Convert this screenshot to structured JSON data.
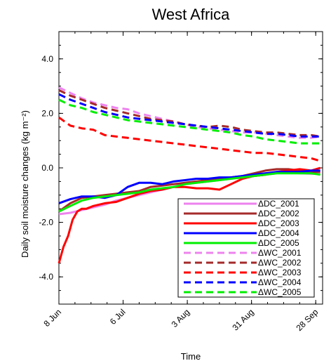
{
  "chart_data": {
    "type": "line",
    "title": "West Africa",
    "xlabel": "Time",
    "ylabel": "Daily soil moisture changes (kg m⁻²)",
    "xlim": [
      0,
      115
    ],
    "ylim": [
      -5.0,
      5.0
    ],
    "x_ticks": [
      {
        "x": 0,
        "label": "8 Jun"
      },
      {
        "x": 28,
        "label": "6 Jul"
      },
      {
        "x": 56,
        "label": "3 Aug"
      },
      {
        "x": 84,
        "label": "31 Aug"
      },
      {
        "x": 112,
        "label": "28 Sep"
      }
    ],
    "y_ticks": [
      {
        "y": 4.0,
        "label": "4.0"
      },
      {
        "y": 2.0,
        "label": "2.0"
      },
      {
        "y": 0.0,
        "label": "0.0"
      },
      {
        "y": -2.0,
        "label": "-2.0"
      },
      {
        "y": -4.0,
        "label": "-4.0"
      }
    ],
    "legend": "bottom-right",
    "series": [
      {
        "name": "ΔDC_2001",
        "color": "#ee82ee",
        "dash": "solid",
        "x": [
          0,
          5,
          10,
          15,
          20,
          25,
          30,
          35,
          40,
          45,
          50,
          55,
          60,
          65,
          70,
          75,
          80,
          85,
          90,
          95,
          100,
          105,
          110,
          114
        ],
        "y": [
          -1.7,
          -1.65,
          -1.55,
          -1.45,
          -1.35,
          -1.2,
          -1.1,
          -1.0,
          -0.9,
          -0.8,
          -0.7,
          -0.6,
          -0.55,
          -0.5,
          -0.45,
          -0.4,
          -0.35,
          -0.3,
          -0.25,
          -0.2,
          -0.18,
          -0.2,
          -0.22,
          -0.22
        ]
      },
      {
        "name": "ΔDC_2002",
        "color": "#a52a2a",
        "dash": "solid",
        "x": [
          0,
          5,
          10,
          15,
          20,
          25,
          30,
          35,
          40,
          45,
          50,
          55,
          60,
          65,
          70,
          75,
          80,
          85,
          90,
          95,
          100,
          105,
          110,
          114
        ],
        "y": [
          -1.6,
          -1.3,
          -1.1,
          -1.05,
          -1.0,
          -0.95,
          -0.9,
          -0.85,
          -0.7,
          -0.65,
          -0.6,
          -0.55,
          -0.5,
          -0.45,
          -0.4,
          -0.35,
          -0.3,
          -0.2,
          -0.1,
          -0.05,
          -0.05,
          -0.1,
          -0.15,
          -0.15
        ]
      },
      {
        "name": "ΔDC_2003",
        "color": "#ff0000",
        "dash": "solid",
        "x": [
          0,
          2,
          4,
          6,
          8,
          10,
          12,
          15,
          20,
          25,
          30,
          35,
          40,
          45,
          50,
          55,
          60,
          65,
          70,
          75,
          80,
          85,
          90,
          95,
          100,
          105,
          110,
          114
        ],
        "y": [
          -3.5,
          -2.9,
          -2.5,
          -1.9,
          -1.6,
          -1.5,
          -1.5,
          -1.4,
          -1.3,
          -1.25,
          -1.1,
          -0.95,
          -0.85,
          -0.8,
          -0.7,
          -0.7,
          -0.75,
          -0.75,
          -0.8,
          -0.6,
          -0.4,
          -0.3,
          -0.25,
          -0.15,
          -0.1,
          -0.05,
          -0.1,
          0.0
        ]
      },
      {
        "name": "ΔDC_2004",
        "color": "#0000ff",
        "dash": "solid",
        "x": [
          0,
          5,
          10,
          15,
          20,
          25,
          30,
          35,
          40,
          45,
          50,
          55,
          60,
          65,
          70,
          75,
          80,
          85,
          90,
          95,
          100,
          105,
          110,
          114
        ],
        "y": [
          -1.3,
          -1.15,
          -1.05,
          -1.05,
          -1.1,
          -1.0,
          -0.7,
          -0.55,
          -0.55,
          -0.6,
          -0.5,
          -0.45,
          -0.4,
          -0.4,
          -0.35,
          -0.35,
          -0.3,
          -0.25,
          -0.2,
          -0.15,
          -0.15,
          -0.15,
          -0.1,
          -0.1
        ]
      },
      {
        "name": "ΔDC_2005",
        "color": "#00ee00",
        "dash": "solid",
        "x": [
          0,
          5,
          10,
          15,
          20,
          25,
          30,
          35,
          40,
          45,
          50,
          55,
          60,
          65,
          70,
          75,
          80,
          85,
          90,
          95,
          100,
          105,
          110,
          114
        ],
        "y": [
          -1.6,
          -1.4,
          -1.2,
          -1.1,
          -1.05,
          -1.0,
          -0.95,
          -0.9,
          -0.8,
          -0.75,
          -0.7,
          -0.6,
          -0.55,
          -0.5,
          -0.45,
          -0.4,
          -0.35,
          -0.3,
          -0.25,
          -0.2,
          -0.2,
          -0.2,
          -0.2,
          -0.25
        ]
      },
      {
        "name": "ΔWC_2001",
        "color": "#ee82ee",
        "dash": "dashed",
        "x": [
          0,
          5,
          10,
          15,
          20,
          25,
          30,
          35,
          40,
          45,
          50,
          55,
          60,
          65,
          70,
          75,
          80,
          85,
          90,
          95,
          100,
          105,
          110,
          114
        ],
        "y": [
          2.95,
          2.75,
          2.55,
          2.4,
          2.3,
          2.2,
          2.15,
          2.0,
          1.9,
          1.8,
          1.7,
          1.6,
          1.5,
          1.45,
          1.4,
          1.35,
          1.3,
          1.3,
          1.25,
          1.2,
          1.15,
          1.1,
          1.1,
          1.15
        ]
      },
      {
        "name": "ΔWC_2002",
        "color": "#a52a2a",
        "dash": "dashed",
        "x": [
          0,
          5,
          10,
          15,
          20,
          25,
          30,
          35,
          40,
          45,
          50,
          55,
          60,
          65,
          70,
          75,
          80,
          85,
          90,
          95,
          100,
          105,
          110,
          114
        ],
        "y": [
          2.85,
          2.65,
          2.5,
          2.35,
          2.2,
          2.1,
          2.0,
          1.9,
          1.8,
          1.75,
          1.7,
          1.6,
          1.55,
          1.5,
          1.55,
          1.5,
          1.4,
          1.35,
          1.3,
          1.3,
          1.25,
          1.2,
          1.2,
          1.15
        ]
      },
      {
        "name": "ΔWC_2003",
        "color": "#ff0000",
        "dash": "dashed",
        "x": [
          0,
          5,
          10,
          15,
          20,
          25,
          30,
          35,
          40,
          45,
          50,
          55,
          60,
          65,
          70,
          75,
          80,
          85,
          90,
          95,
          100,
          105,
          110,
          114
        ],
        "y": [
          1.85,
          1.55,
          1.45,
          1.4,
          1.2,
          1.15,
          1.1,
          1.05,
          1.0,
          0.95,
          0.9,
          0.85,
          0.8,
          0.75,
          0.7,
          0.65,
          0.6,
          0.55,
          0.55,
          0.5,
          0.45,
          0.4,
          0.35,
          0.25
        ]
      },
      {
        "name": "ΔWC_2004",
        "color": "#0000ff",
        "dash": "dashed",
        "x": [
          0,
          5,
          10,
          15,
          20,
          25,
          30,
          35,
          40,
          45,
          50,
          55,
          60,
          65,
          70,
          75,
          80,
          85,
          90,
          95,
          100,
          105,
          110,
          114
        ],
        "y": [
          2.7,
          2.5,
          2.35,
          2.2,
          2.05,
          1.95,
          1.85,
          1.8,
          1.75,
          1.7,
          1.65,
          1.6,
          1.55,
          1.5,
          1.45,
          1.4,
          1.35,
          1.3,
          1.25,
          1.25,
          1.2,
          1.15,
          1.15,
          1.15
        ]
      },
      {
        "name": "ΔWC_2005",
        "color": "#00ee00",
        "dash": "dashed",
        "x": [
          0,
          5,
          10,
          15,
          20,
          25,
          30,
          35,
          40,
          45,
          50,
          55,
          60,
          65,
          70,
          75,
          80,
          85,
          90,
          95,
          100,
          105,
          110,
          114
        ],
        "y": [
          2.5,
          2.3,
          2.2,
          2.05,
          1.95,
          1.85,
          1.75,
          1.7,
          1.65,
          1.6,
          1.55,
          1.5,
          1.45,
          1.4,
          1.35,
          1.3,
          1.2,
          1.15,
          1.05,
          1.0,
          0.95,
          0.9,
          0.9,
          0.9
        ]
      }
    ]
  }
}
